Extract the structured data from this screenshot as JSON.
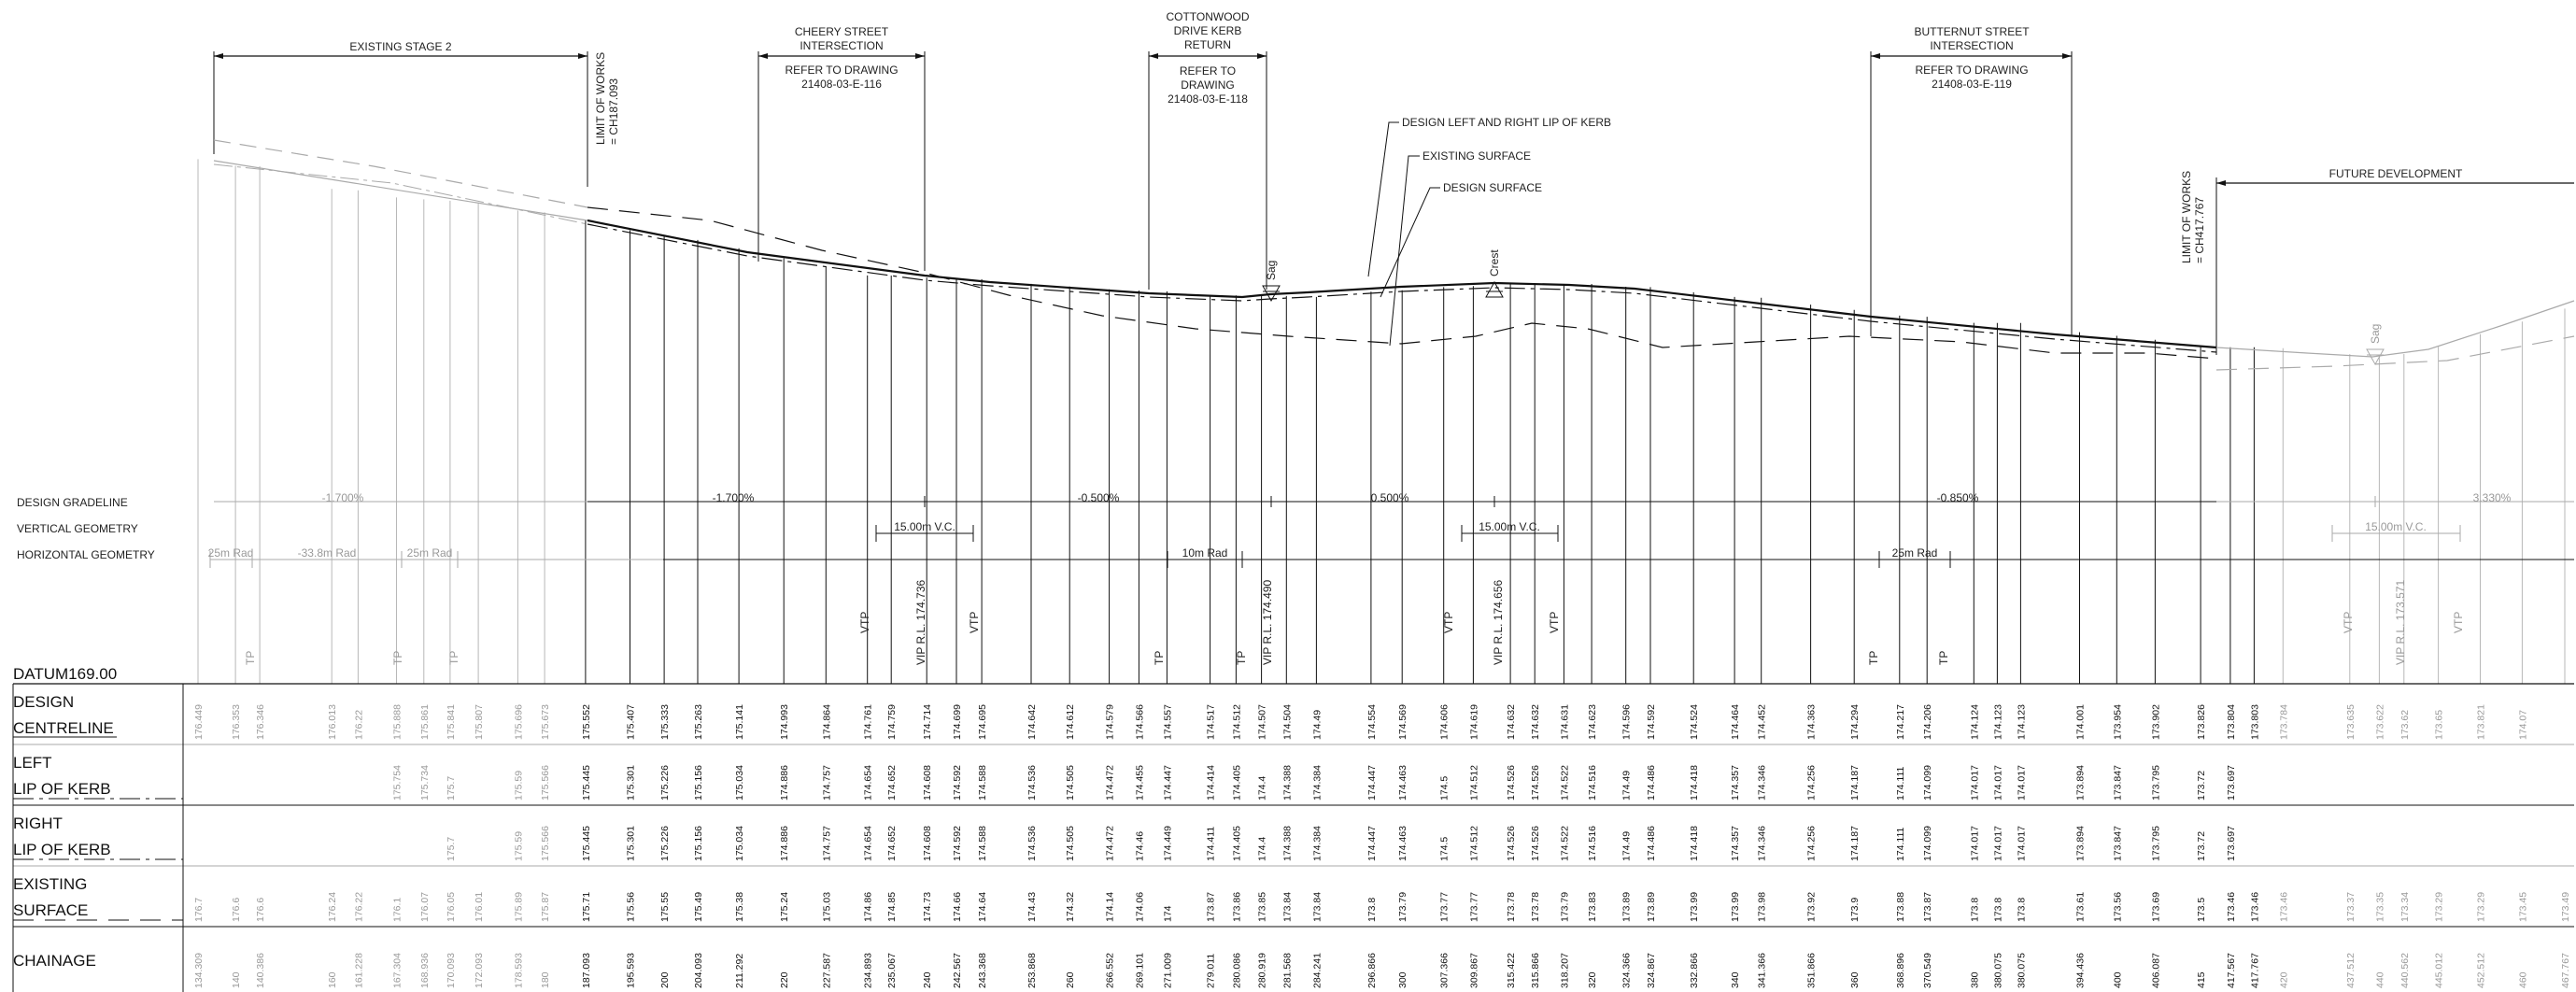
{
  "headers": [
    {
      "lines": [
        "EXISTING STAGE 2"
      ]
    },
    {
      "lines": [
        "CHEERY STREET",
        "INTERSECTION",
        "",
        "REFER TO DRAWING",
        "21408-03-E-116"
      ]
    },
    {
      "lines": [
        "COTTONWOOD",
        "DRIVE KERB",
        "RETURN",
        "REFER TO",
        "DRAWING",
        "21408-03-E-118"
      ]
    },
    {
      "lines": [
        "BUTTERNUT STREET",
        "INTERSECTION",
        "",
        "REFER TO DRAWING",
        "21408-03-E-119"
      ]
    },
    {
      "lines": [
        "FUTURE DEVELOPMENT"
      ]
    }
  ],
  "limit_start": [
    "LIMIT OF WORKS",
    "= CH187.093"
  ],
  "limit_end": [
    "LIMIT OF WORKS",
    "= CH417.767"
  ],
  "callouts": [
    "DESIGN LEFT AND RIGHT LIP OF KERB",
    "EXISTING SURFACE",
    "DESIGN SURFACE"
  ],
  "markers": {
    "sag": "Sag",
    "crest": "Crest",
    "tp": "TP",
    "vtp": "VTP"
  },
  "row_labels": {
    "design_gradeline": "DESIGN GRADELINE",
    "vertical_geometry": "VERTICAL GEOMETRY",
    "horizontal_geometry": "HORIZONTAL GEOMETRY",
    "datum": "DATUM169.00",
    "design_centreline": [
      "DESIGN",
      "CENTRELINE"
    ],
    "left_lip": [
      "LEFT",
      "LIP OF KERB"
    ],
    "right_lip": [
      "RIGHT",
      "LIP OF KERB"
    ],
    "existing_surface": [
      "EXISTING",
      "SURFACE"
    ],
    "chainage": "CHAINAGE"
  },
  "grades": [
    "-1.700%",
    "-1.700%",
    "-0.500%",
    "0.500%",
    "-0.850%",
    "3.330%"
  ],
  "vertical_curves": [
    "15.00m V.C.",
    "15.00m V.C.",
    "15.00m V.C."
  ],
  "vips": [
    "VIP R.L. 174.736",
    "VIP R.L. 174.490",
    "VIP R.L. 174.656",
    "VIP R.L. 173.571"
  ],
  "horizontal_curves": [
    "25m Rad",
    "-33.8m Rad",
    "25m Rad",
    "10m Rad",
    "25m Rad"
  ],
  "chart_data": {
    "type": "table",
    "chainage": [
      "134.309",
      "140",
      "140.386",
      "160",
      "161.228",
      "167.304",
      "168.936",
      "170.093",
      "172.093",
      "178.593",
      "180",
      "187.093",
      "195.593",
      "200",
      "204.093",
      "211.292",
      "220",
      "227.587",
      "234.893",
      "235.067",
      "240",
      "242.567",
      "243.368",
      "253.868",
      "260",
      "266.552",
      "269.101",
      "271.009",
      "279.011",
      "280.086",
      "280.919",
      "281.568",
      "284.241",
      "296.866",
      "300",
      "307.366",
      "309.867",
      "315.422",
      "315.866",
      "318.207",
      "320",
      "324.366",
      "324.867",
      "332.866",
      "340",
      "341.366",
      "351.866",
      "360",
      "368.896",
      "370.549",
      "380",
      "380.075",
      "380.075",
      "394.436",
      "400",
      "406.087",
      "415",
      "417.567",
      "417.767",
      "420",
      "437.512",
      "440",
      "440.562",
      "445.012",
      "452.512",
      "460",
      "467.767"
    ],
    "design_centreline": [
      "176.449",
      "176.353",
      "176.346",
      "176.013",
      "176.22",
      "175.888",
      "175.861",
      "175.841",
      "175.807",
      "175.696",
      "175.673",
      "175.552",
      "175.407",
      "175.333",
      "175.263",
      "175.141",
      "174.993",
      "174.864",
      "174.761",
      "174.759",
      "174.714",
      "174.699",
      "174.695",
      "174.642",
      "174.612",
      "174.579",
      "174.566",
      "174.557",
      "174.517",
      "174.512",
      "174.507",
      "174.504",
      "174.49",
      "174.554",
      "174.569",
      "174.606",
      "174.619",
      "174.632",
      "174.632",
      "174.631",
      "174.623",
      "174.596",
      "174.592",
      "174.524",
      "174.464",
      "174.452",
      "174.363",
      "174.294",
      "174.217",
      "174.206",
      "174.124",
      "174.123",
      "174.123",
      "174.001",
      "173.954",
      "173.902",
      "173.826",
      "173.804",
      "173.803",
      "173.784",
      "173.635",
      "173.622",
      "173.62",
      "173.65",
      "173.821",
      "174.07",
      ""
    ],
    "left_lip": [
      "",
      "",
      "",
      "",
      "",
      "175.754",
      "175.734",
      "175.7",
      "",
      "175.59",
      "175.566",
      "175.445",
      "175.301",
      "175.226",
      "175.156",
      "175.034",
      "174.886",
      "174.757",
      "174.654",
      "174.652",
      "174.608",
      "174.592",
      "174.588",
      "174.536",
      "174.505",
      "174.472",
      "174.455",
      "174.447",
      "174.414",
      "174.405",
      "174.4",
      "174.388",
      "174.384",
      "174.447",
      "174.463",
      "174.5",
      "174.512",
      "174.526",
      "174.526",
      "174.522",
      "174.516",
      "174.49",
      "174.486",
      "174.418",
      "174.357",
      "174.346",
      "174.256",
      "174.187",
      "174.111",
      "174.099",
      "174.017",
      "174.017",
      "174.017",
      "173.894",
      "173.847",
      "173.795",
      "173.72",
      "173.697",
      "",
      "",
      "",
      "",
      "",
      "",
      "",
      "",
      ""
    ],
    "right_lip": [
      "",
      "",
      "",
      "",
      "",
      "",
      "",
      "175.7",
      "",
      "175.59",
      "175.566",
      "175.445",
      "175.301",
      "175.226",
      "175.156",
      "175.034",
      "174.886",
      "174.757",
      "174.654",
      "174.652",
      "174.608",
      "174.592",
      "174.588",
      "174.536",
      "174.505",
      "174.472",
      "174.46",
      "174.449",
      "174.411",
      "174.405",
      "174.4",
      "174.388",
      "174.384",
      "174.447",
      "174.463",
      "174.5",
      "174.512",
      "174.526",
      "174.526",
      "174.522",
      "174.516",
      "174.49",
      "174.486",
      "174.418",
      "174.357",
      "174.346",
      "174.256",
      "174.187",
      "174.111",
      "174.099",
      "174.017",
      "174.017",
      "174.017",
      "173.894",
      "173.847",
      "173.795",
      "173.72",
      "173.697",
      "",
      "",
      "",
      "",
      "",
      "",
      "",
      "",
      ""
    ],
    "existing_surface": [
      "176.7",
      "176.6",
      "176.6",
      "176.24",
      "176.22",
      "176.1",
      "176.07",
      "176.05",
      "176.01",
      "175.89",
      "175.87",
      "175.71",
      "175.56",
      "175.55",
      "175.49",
      "175.38",
      "175.24",
      "175.03",
      "174.86",
      "174.85",
      "174.73",
      "174.66",
      "174.64",
      "174.43",
      "174.32",
      "174.14",
      "174.06",
      "174",
      "173.87",
      "173.86",
      "173.85",
      "173.84",
      "173.84",
      "173.8",
      "173.79",
      "173.77",
      "173.77",
      "173.78",
      "173.78",
      "173.79",
      "173.83",
      "173.89",
      "173.89",
      "173.99",
      "173.99",
      "173.98",
      "173.92",
      "173.9",
      "173.88",
      "173.87",
      "173.8",
      "173.8",
      "173.8",
      "173.61",
      "173.56",
      "173.69",
      "173.5",
      "173.46",
      "173.46",
      "173.46",
      "173.37",
      "173.35",
      "173.34",
      "173.29",
      "173.29",
      "173.45",
      "173.49"
    ]
  }
}
